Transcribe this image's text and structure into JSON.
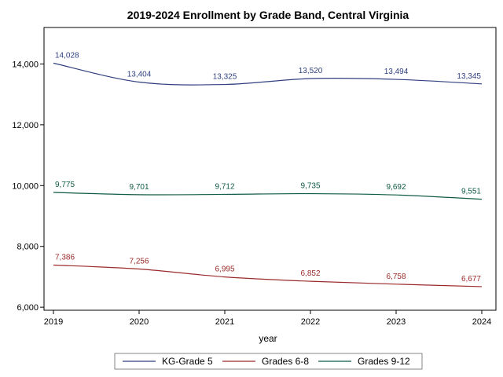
{
  "chart_data": {
    "type": "line",
    "title": "2019-2024 Enrollment by Grade Band, Central Virginia",
    "xlabel": "year",
    "ylabel": "",
    "x": [
      2019,
      2020,
      2021,
      2022,
      2023,
      2024
    ],
    "xlim": [
      2019,
      2024
    ],
    "ylim": [
      5900,
      15200
    ],
    "y_ticks": [
      6000,
      8000,
      10000,
      12000,
      14000
    ],
    "y_tick_labels": [
      "6,000",
      "8,000",
      "10,000",
      "12,000",
      "14,000"
    ],
    "x_tick_labels": [
      "2019",
      "2020",
      "2021",
      "2022",
      "2023",
      "2024"
    ],
    "grid": false,
    "legend_position": "bottom",
    "series": [
      {
        "name": "KG-Grade 5",
        "color": "#2f3f7f",
        "values": [
          14028,
          13404,
          13325,
          13520,
          13494,
          13345
        ],
        "labels": [
          "14,028",
          "13,404",
          "13,325",
          "13,520",
          "13,494",
          "13,345"
        ]
      },
      {
        "name": "Grades 6-8",
        "color": "#9a2a2a",
        "values": [
          7386,
          7256,
          6995,
          6852,
          6758,
          6677
        ],
        "labels": [
          "7,386",
          "7,256",
          "6,995",
          "6,852",
          "6,758",
          "6,677"
        ]
      },
      {
        "name": "Grades 9-12",
        "color": "#0f5a46",
        "values": [
          9775,
          9701,
          9712,
          9735,
          9692,
          9551
        ],
        "labels": [
          "9,775",
          "9,701",
          "9,712",
          "9,735",
          "9,692",
          "9,551"
        ]
      }
    ]
  }
}
